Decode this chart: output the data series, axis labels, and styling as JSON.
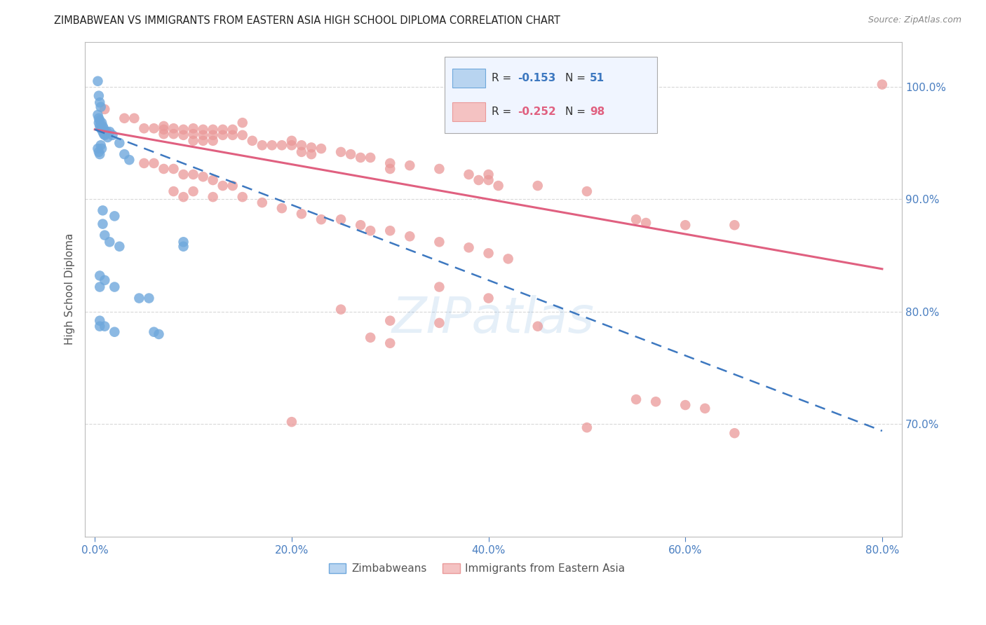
{
  "title": "ZIMBABWEAN VS IMMIGRANTS FROM EASTERN ASIA HIGH SCHOOL DIPLOMA CORRELATION CHART",
  "source": "Source: ZipAtlas.com",
  "ylabel": "High School Diploma",
  "xlabel_ticks": [
    "0.0%",
    "20.0%",
    "40.0%",
    "60.0%",
    "80.0%"
  ],
  "xlabel_vals": [
    0.0,
    0.2,
    0.4,
    0.6,
    0.8
  ],
  "ylabel_ticks": [
    "70.0%",
    "80.0%",
    "90.0%",
    "100.0%"
  ],
  "ylabel_vals": [
    0.7,
    0.8,
    0.9,
    1.0
  ],
  "xlim": [
    -0.01,
    0.82
  ],
  "ylim": [
    0.6,
    1.04
  ],
  "watermark": "ZIPatlas",
  "zimbabwean_color": "#6fa8dc",
  "eastern_asia_color": "#ea9999",
  "trend_zim_color": "#3d78c0",
  "trend_ea_color": "#e06080",
  "background_color": "#ffffff",
  "grid_color": "#d8d8d8",
  "axis_color": "#bbbbbb",
  "right_label_color": "#4a7fc1",
  "zim_scatter": [
    [
      0.003,
      1.005
    ],
    [
      0.004,
      0.992
    ],
    [
      0.005,
      0.986
    ],
    [
      0.006,
      0.982
    ],
    [
      0.003,
      0.975
    ],
    [
      0.004,
      0.972
    ],
    [
      0.005,
      0.97
    ],
    [
      0.004,
      0.968
    ],
    [
      0.005,
      0.965
    ],
    [
      0.006,
      0.963
    ],
    [
      0.007,
      0.968
    ],
    [
      0.007,
      0.962
    ],
    [
      0.008,
      0.965
    ],
    [
      0.008,
      0.96
    ],
    [
      0.009,
      0.963
    ],
    [
      0.009,
      0.958
    ],
    [
      0.01,
      0.96
    ],
    [
      0.01,
      0.957
    ],
    [
      0.011,
      0.958
    ],
    [
      0.012,
      0.96
    ],
    [
      0.013,
      0.955
    ],
    [
      0.015,
      0.96
    ],
    [
      0.018,
      0.957
    ],
    [
      0.025,
      0.95
    ],
    [
      0.003,
      0.945
    ],
    [
      0.004,
      0.942
    ],
    [
      0.005,
      0.94
    ],
    [
      0.006,
      0.948
    ],
    [
      0.007,
      0.945
    ],
    [
      0.03,
      0.94
    ],
    [
      0.035,
      0.935
    ],
    [
      0.008,
      0.89
    ],
    [
      0.008,
      0.878
    ],
    [
      0.02,
      0.885
    ],
    [
      0.01,
      0.868
    ],
    [
      0.015,
      0.862
    ],
    [
      0.025,
      0.858
    ],
    [
      0.005,
      0.832
    ],
    [
      0.005,
      0.822
    ],
    [
      0.01,
      0.828
    ],
    [
      0.02,
      0.822
    ],
    [
      0.045,
      0.812
    ],
    [
      0.055,
      0.812
    ],
    [
      0.005,
      0.792
    ],
    [
      0.005,
      0.787
    ],
    [
      0.01,
      0.787
    ],
    [
      0.02,
      0.782
    ],
    [
      0.06,
      0.782
    ],
    [
      0.065,
      0.78
    ],
    [
      0.09,
      0.862
    ],
    [
      0.09,
      0.858
    ]
  ],
  "eastern_asia_scatter": [
    [
      0.01,
      0.98
    ],
    [
      0.03,
      0.972
    ],
    [
      0.04,
      0.972
    ],
    [
      0.15,
      0.968
    ],
    [
      0.05,
      0.963
    ],
    [
      0.06,
      0.963
    ],
    [
      0.07,
      0.965
    ],
    [
      0.07,
      0.962
    ],
    [
      0.07,
      0.958
    ],
    [
      0.08,
      0.963
    ],
    [
      0.08,
      0.958
    ],
    [
      0.09,
      0.962
    ],
    [
      0.09,
      0.957
    ],
    [
      0.1,
      0.963
    ],
    [
      0.1,
      0.958
    ],
    [
      0.1,
      0.952
    ],
    [
      0.11,
      0.962
    ],
    [
      0.11,
      0.957
    ],
    [
      0.11,
      0.952
    ],
    [
      0.12,
      0.962
    ],
    [
      0.12,
      0.957
    ],
    [
      0.12,
      0.952
    ],
    [
      0.13,
      0.962
    ],
    [
      0.13,
      0.957
    ],
    [
      0.14,
      0.962
    ],
    [
      0.14,
      0.957
    ],
    [
      0.15,
      0.957
    ],
    [
      0.16,
      0.952
    ],
    [
      0.17,
      0.948
    ],
    [
      0.18,
      0.948
    ],
    [
      0.19,
      0.948
    ],
    [
      0.2,
      0.952
    ],
    [
      0.2,
      0.948
    ],
    [
      0.21,
      0.948
    ],
    [
      0.21,
      0.942
    ],
    [
      0.22,
      0.946
    ],
    [
      0.22,
      0.94
    ],
    [
      0.23,
      0.945
    ],
    [
      0.25,
      0.942
    ],
    [
      0.26,
      0.94
    ],
    [
      0.27,
      0.937
    ],
    [
      0.28,
      0.937
    ],
    [
      0.3,
      0.932
    ],
    [
      0.3,
      0.927
    ],
    [
      0.32,
      0.93
    ],
    [
      0.35,
      0.927
    ],
    [
      0.38,
      0.922
    ],
    [
      0.39,
      0.917
    ],
    [
      0.4,
      0.922
    ],
    [
      0.4,
      0.917
    ],
    [
      0.41,
      0.912
    ],
    [
      0.45,
      0.912
    ],
    [
      0.5,
      0.907
    ],
    [
      0.55,
      0.882
    ],
    [
      0.56,
      0.879
    ],
    [
      0.6,
      0.877
    ],
    [
      0.65,
      0.877
    ],
    [
      0.05,
      0.932
    ],
    [
      0.06,
      0.932
    ],
    [
      0.07,
      0.927
    ],
    [
      0.08,
      0.927
    ],
    [
      0.09,
      0.922
    ],
    [
      0.1,
      0.922
    ],
    [
      0.11,
      0.92
    ],
    [
      0.12,
      0.917
    ],
    [
      0.13,
      0.912
    ],
    [
      0.14,
      0.912
    ],
    [
      0.08,
      0.907
    ],
    [
      0.09,
      0.902
    ],
    [
      0.1,
      0.907
    ],
    [
      0.12,
      0.902
    ],
    [
      0.15,
      0.902
    ],
    [
      0.17,
      0.897
    ],
    [
      0.19,
      0.892
    ],
    [
      0.21,
      0.887
    ],
    [
      0.23,
      0.882
    ],
    [
      0.25,
      0.882
    ],
    [
      0.27,
      0.877
    ],
    [
      0.28,
      0.872
    ],
    [
      0.3,
      0.872
    ],
    [
      0.32,
      0.867
    ],
    [
      0.35,
      0.862
    ],
    [
      0.38,
      0.857
    ],
    [
      0.4,
      0.852
    ],
    [
      0.42,
      0.847
    ],
    [
      0.35,
      0.822
    ],
    [
      0.4,
      0.812
    ],
    [
      0.25,
      0.802
    ],
    [
      0.3,
      0.792
    ],
    [
      0.35,
      0.79
    ],
    [
      0.45,
      0.787
    ],
    [
      0.28,
      0.777
    ],
    [
      0.3,
      0.772
    ],
    [
      0.55,
      0.722
    ],
    [
      0.57,
      0.72
    ],
    [
      0.6,
      0.717
    ],
    [
      0.62,
      0.714
    ],
    [
      0.2,
      0.702
    ],
    [
      0.5,
      0.697
    ],
    [
      0.65,
      0.692
    ],
    [
      0.8,
      1.002
    ]
  ],
  "zim_trend_intercept": 0.962,
  "zim_trend_slope": -0.335,
  "ea_trend_intercept": 0.962,
  "ea_trend_slope": -0.155
}
